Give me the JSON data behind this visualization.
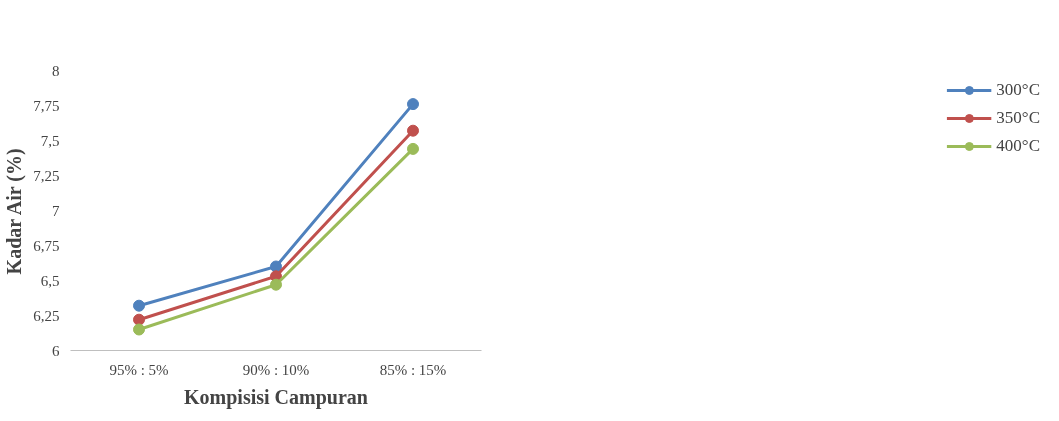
{
  "chart_data": {
    "type": "line",
    "xlabel": "Kompisisi Campuran",
    "ylabel": "Kadar Air (%)",
    "categories": [
      "95% : 5%",
      "90% : 10%",
      "85% : 15%"
    ],
    "series": [
      {
        "name": "300°C",
        "color": "#4f81bd",
        "values": [
          6.32,
          6.6,
          7.76
        ]
      },
      {
        "name": "350°C",
        "color": "#c0504d",
        "values": [
          6.22,
          6.53,
          7.57
        ]
      },
      {
        "name": "400°C",
        "color": "#9bbb59",
        "values": [
          6.15,
          6.47,
          7.44
        ]
      }
    ],
    "ylim": [
      6,
      8
    ],
    "yticks": [
      6,
      {
        "value": 6.25,
        "label": "6,25"
      },
      {
        "value": 6.5,
        "label": "6,5"
      },
      {
        "value": 6.75,
        "label": "6,75"
      },
      7,
      {
        "value": 7.25,
        "label": "7,25"
      },
      {
        "value": 7.5,
        "label": "7,5"
      },
      {
        "value": 7.75,
        "label": "7,75"
      },
      8
    ],
    "grid": false,
    "legend": "right",
    "marker": "circle",
    "line_style": "solid"
  }
}
